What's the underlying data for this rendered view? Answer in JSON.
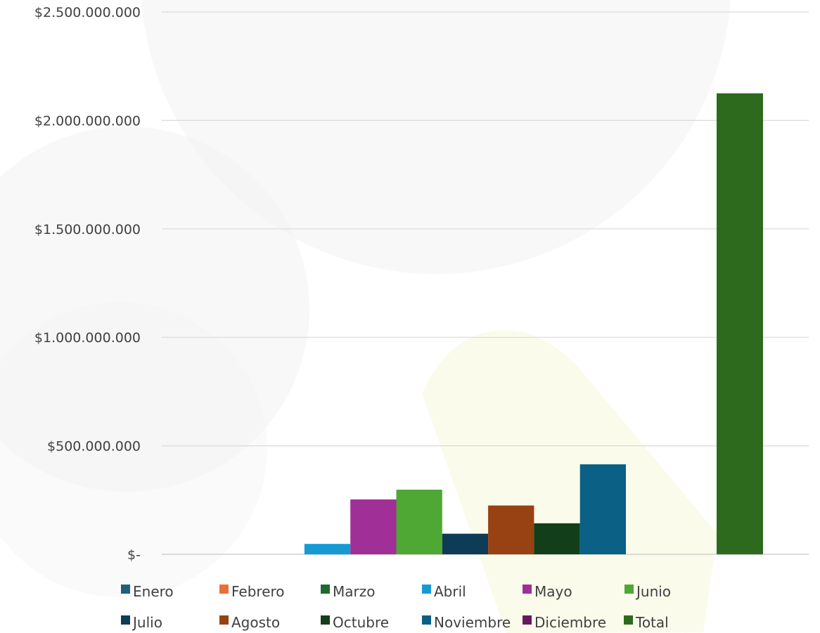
{
  "chart_data": {
    "type": "bar",
    "title": "",
    "xlabel": "",
    "ylabel": "",
    "ylim": [
      0,
      2500000000
    ],
    "yticks": [
      0,
      500000000,
      1000000000,
      1500000000,
      2000000000,
      2500000000
    ],
    "ytick_labels": [
      "$-",
      "$500.000.000",
      "$1.000.000.000",
      "$1.500.000.000",
      "$2.000.000.000",
      "$2.500.000.000"
    ],
    "grid": true,
    "legend_position": "bottom",
    "series": [
      {
        "name": "Enero",
        "value": 0,
        "color": "#1F5F7A"
      },
      {
        "name": "Febrero",
        "value": 0,
        "color": "#E9703A"
      },
      {
        "name": "Marzo",
        "value": 0,
        "color": "#1E6B30"
      },
      {
        "name": "Abril",
        "value": 48000000,
        "color": "#169AD4"
      },
      {
        "name": "Mayo",
        "value": 253000000,
        "color": "#A02F97"
      },
      {
        "name": "Junio",
        "value": 298000000,
        "color": "#4FA834"
      },
      {
        "name": "Julio",
        "value": 95000000,
        "color": "#0E3B56"
      },
      {
        "name": "Agosto",
        "value": 225000000,
        "color": "#984112"
      },
      {
        "name": "Octubre",
        "value": 143000000,
        "color": "#123F1A"
      },
      {
        "name": "Noviembre",
        "value": 415000000,
        "color": "#0A6185"
      },
      {
        "name": "Diciembre",
        "value": 0,
        "color": "#651A5E"
      },
      {
        "name": "Total",
        "value": 2125000000,
        "color": "#2E6A1E"
      }
    ]
  }
}
